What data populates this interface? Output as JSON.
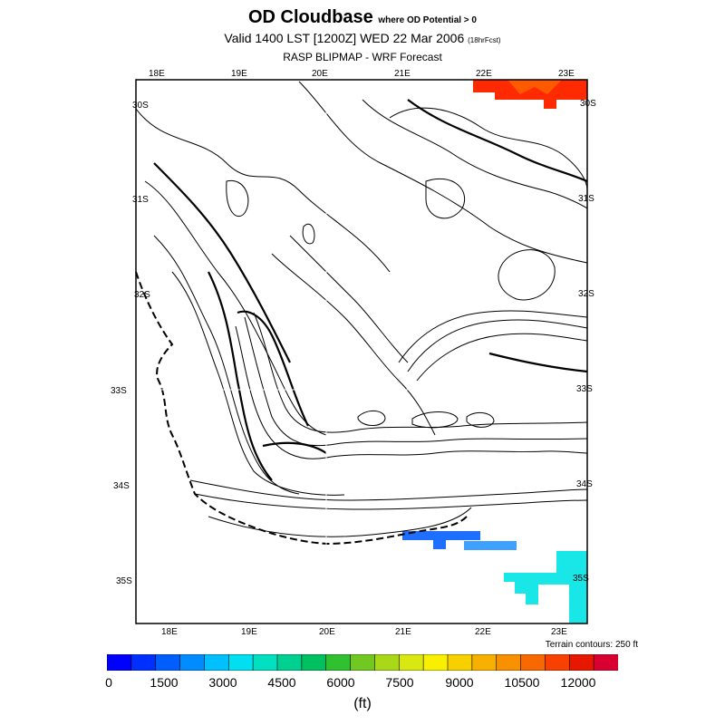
{
  "header": {
    "title": "OD Cloudbase",
    "title_qualifier": "where OD Potential > 0",
    "valid": "Valid 1400 LST [1200Z] WED 22 Mar 2006",
    "forecast_hours": "(18hrFcst)",
    "subtitle": "RASP BLIPMAP - WRF Forecast"
  },
  "map": {
    "lon_labels_top": [
      "18E",
      "19E",
      "20E",
      "21E",
      "22E",
      "23E"
    ],
    "lon_labels_bottom": [
      "18E",
      "19E",
      "20E",
      "21E",
      "22E",
      "23E"
    ],
    "lat_labels_left": [
      "30S",
      "31S",
      "32S",
      "33S",
      "34S",
      "35S"
    ],
    "lat_labels_right": [
      "30S",
      "31S",
      "32S",
      "33S",
      "34S",
      "35S"
    ],
    "terrain_note": "Terrain contours: 250 ft",
    "colors": {
      "frame": "#000000",
      "contour": "#000000",
      "cloudbase_high": "#ff2a00",
      "cloudbase_low": "#1e6fff",
      "cloudbase_mid": "#19e6e6"
    }
  },
  "colorbar": {
    "colors": [
      "#0000ff",
      "#0030ff",
      "#005eff",
      "#008cff",
      "#00c0ff",
      "#00e0f0",
      "#00e0c0",
      "#00d090",
      "#00c060",
      "#30c030",
      "#70c820",
      "#a8d818",
      "#d8e810",
      "#f8f000",
      "#f8d000",
      "#f8b000",
      "#f89000",
      "#f86800",
      "#f84000",
      "#e81800",
      "#d80030"
    ],
    "tick_labels": [
      "0",
      "1500",
      "3000",
      "4500",
      "6000",
      "7500",
      "9000",
      "10500",
      "12000"
    ],
    "unit": "(ft)"
  }
}
